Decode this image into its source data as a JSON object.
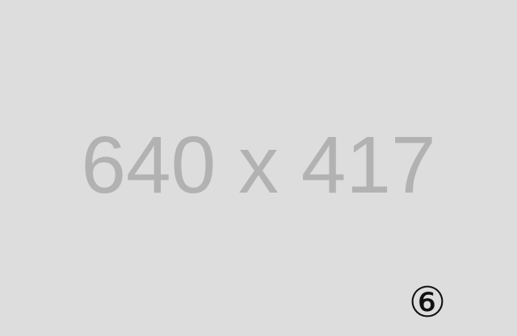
{
  "placeholder": {
    "dimensions_text": "640 x 417",
    "badge_text": "⑥",
    "background_color": "#dddddd",
    "text_color": "#b2b2b2",
    "badge_color": "#111111"
  }
}
